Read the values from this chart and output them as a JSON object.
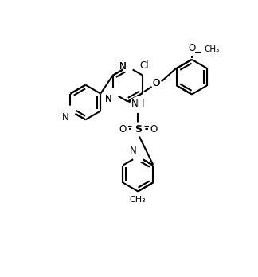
{
  "bg_color": "#ffffff",
  "line_color": "#000000",
  "lw": 1.5,
  "figsize": [
    3.24,
    3.48
  ],
  "dpi": 100,
  "xlim": [
    -1.0,
    9.5
  ],
  "ylim": [
    -1.0,
    9.5
  ]
}
